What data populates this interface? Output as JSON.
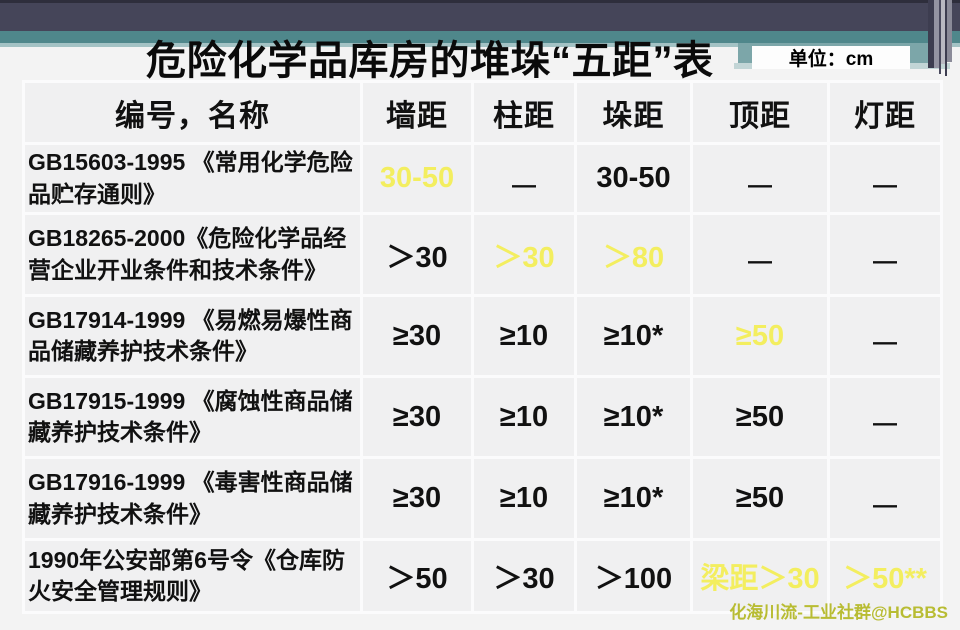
{
  "slide": {
    "title": "危险化学品库房的堆垛“五距”表",
    "unit_label": "单位：cm",
    "watermark": "化海川流-工业社群@HCBBS"
  },
  "colors": {
    "highlight": "#f3ee5f",
    "watermark_yellow": "#b8bc33",
    "band_dark": "#454559",
    "band_teal": "#4f878b",
    "band_teal_light": "#a3c2c4",
    "right_block_teal": "#7ca6a9",
    "cell_bg": "#f0f0f1",
    "grid_line": "#fbfbfc",
    "slide_bg": "#f3f3f3"
  },
  "table": {
    "headers": [
      "编号，名称",
      "墙距",
      "柱距",
      "垛距",
      "顶距",
      "灯距"
    ],
    "rows": [
      {
        "name": "GB15603-1995 《常用化学危险\n品贮存通则》",
        "cells": [
          {
            "text": "30-50",
            "highlight": true
          },
          {
            "text": "—",
            "dash": true
          },
          {
            "text": "30-50"
          },
          {
            "text": "—",
            "dash": true
          },
          {
            "text": "—",
            "dash": true
          }
        ]
      },
      {
        "name": "GB18265-2000《危险化学品经\n营企业开业条件和技术条件》",
        "cells": [
          {
            "text": "＞30"
          },
          {
            "text": "＞30",
            "highlight": true
          },
          {
            "text": "＞80",
            "highlight": true
          },
          {
            "text": "—",
            "dash": true
          },
          {
            "text": "—",
            "dash": true
          }
        ]
      },
      {
        "name": "GB17914-1999 《易燃易爆性商\n品储藏养护技术条件》",
        "cells": [
          {
            "text": "≥30"
          },
          {
            "text": "≥10"
          },
          {
            "text": "≥10*"
          },
          {
            "text": "≥50",
            "highlight": true
          },
          {
            "text": "—",
            "dash": true
          }
        ]
      },
      {
        "name": "GB17915-1999 《腐蚀性商品储\n藏养护技术条件》",
        "cells": [
          {
            "text": "≥30"
          },
          {
            "text": "≥10"
          },
          {
            "text": "≥10*"
          },
          {
            "text": "≥50"
          },
          {
            "text": "—",
            "dash": true
          }
        ]
      },
      {
        "name": "GB17916-1999 《毒害性商品储\n藏养护技术条件》",
        "cells": [
          {
            "text": "≥30"
          },
          {
            "text": "≥10"
          },
          {
            "text": "≥10*"
          },
          {
            "text": "≥50"
          },
          {
            "text": "—",
            "dash": true
          }
        ]
      },
      {
        "name": "1990年公安部第6号令《仓库防\n火安全管理规则》",
        "cells": [
          {
            "text": "＞50"
          },
          {
            "text": "＞30"
          },
          {
            "text": "＞100"
          },
          {
            "text": "梁距＞30",
            "highlight": true
          },
          {
            "text": "＞50**",
            "highlight": true
          }
        ]
      }
    ]
  }
}
